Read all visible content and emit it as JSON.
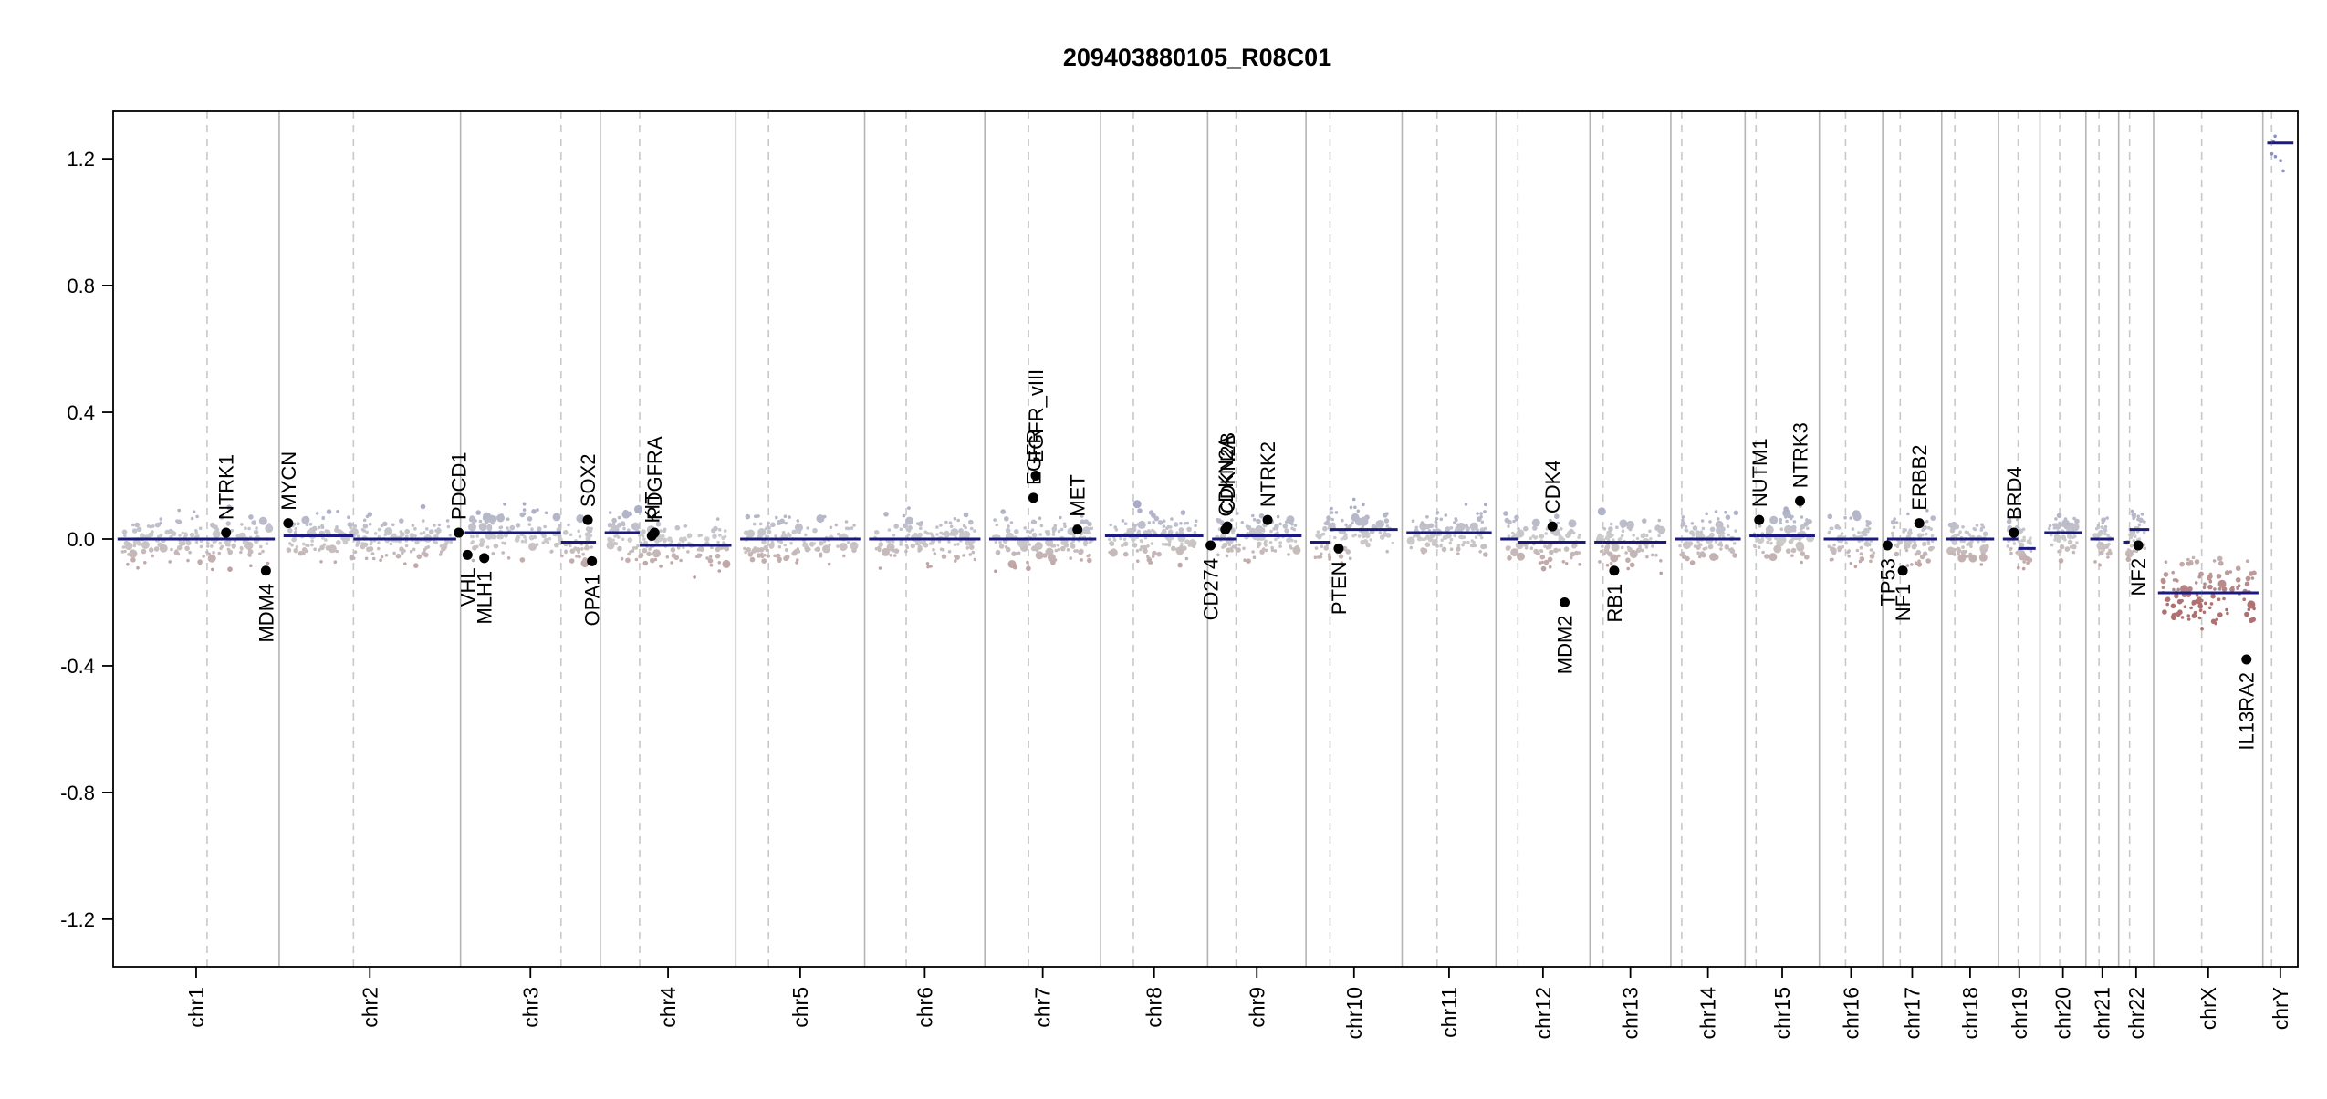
{
  "chart_data": {
    "type": "scatter",
    "title": "209403880105_R08C01",
    "xlabel": "",
    "ylabel": "",
    "ylim": [
      -1.35,
      1.35
    ],
    "yticks": [
      "-1.2",
      "-0.8",
      "-0.4",
      "0.0",
      "0.4",
      "0.8",
      "1.2"
    ],
    "grid": "chromosome boundaries (solid) and centromeres (dashed)",
    "colors": {
      "gain": "#8a8fc4",
      "loss": "#b07070",
      "neutral": "#cccccc",
      "segment": "#1a1a80",
      "gene_marker": "#000000",
      "boundary": "#aaaaaa"
    },
    "chromosomes": [
      {
        "name": "chr1",
        "start": 0.0,
        "end": 0.076,
        "cen": 0.043
      },
      {
        "name": "chr2",
        "start": 0.076,
        "end": 0.159,
        "cen": 0.11
      },
      {
        "name": "chr3",
        "start": 0.159,
        "end": 0.223,
        "cen": 0.205
      },
      {
        "name": "chr4",
        "start": 0.223,
        "end": 0.285,
        "cen": 0.241
      },
      {
        "name": "chr5",
        "start": 0.285,
        "end": 0.344,
        "cen": 0.3
      },
      {
        "name": "chr6",
        "start": 0.344,
        "end": 0.399,
        "cen": 0.363
      },
      {
        "name": "chr7",
        "start": 0.399,
        "end": 0.452,
        "cen": 0.419
      },
      {
        "name": "chr8",
        "start": 0.452,
        "end": 0.501,
        "cen": 0.467
      },
      {
        "name": "chr9",
        "start": 0.501,
        "end": 0.546,
        "cen": 0.514
      },
      {
        "name": "chr10",
        "start": 0.546,
        "end": 0.59,
        "cen": 0.557
      },
      {
        "name": "chr11",
        "start": 0.59,
        "end": 0.633,
        "cen": 0.606
      },
      {
        "name": "chr12",
        "start": 0.633,
        "end": 0.676,
        "cen": 0.643
      },
      {
        "name": "chr13",
        "start": 0.676,
        "end": 0.713,
        "cen": 0.682
      },
      {
        "name": "chr14",
        "start": 0.713,
        "end": 0.747,
        "cen": 0.718
      },
      {
        "name": "chr15",
        "start": 0.747,
        "end": 0.781,
        "cen": 0.752
      },
      {
        "name": "chr16",
        "start": 0.781,
        "end": 0.81,
        "cen": 0.793
      },
      {
        "name": "chr17",
        "start": 0.81,
        "end": 0.837,
        "cen": 0.818
      },
      {
        "name": "chr18",
        "start": 0.837,
        "end": 0.863,
        "cen": 0.843
      },
      {
        "name": "chr19",
        "start": 0.863,
        "end": 0.882,
        "cen": 0.872
      },
      {
        "name": "chr20",
        "start": 0.882,
        "end": 0.903,
        "cen": 0.891
      },
      {
        "name": "chr21",
        "start": 0.903,
        "end": 0.918,
        "cen": 0.909
      },
      {
        "name": "chr22",
        "start": 0.918,
        "end": 0.934,
        "cen": 0.923
      },
      {
        "name": "chrX",
        "start": 0.934,
        "end": 0.984,
        "cen": 0.956
      },
      {
        "name": "chrY",
        "start": 0.984,
        "end": 1.0,
        "cen": 0.988
      }
    ],
    "segments": [
      {
        "chr": "chr1",
        "values": [
          0.0,
          0.0
        ]
      },
      {
        "chr": "chr2",
        "values": [
          0.01,
          0.0
        ]
      },
      {
        "chr": "chr3",
        "values": [
          0.02,
          -0.01
        ]
      },
      {
        "chr": "chr4",
        "values": [
          0.02,
          -0.02
        ]
      },
      {
        "chr": "chr5",
        "values": [
          0.0,
          0.0
        ]
      },
      {
        "chr": "chr6",
        "values": [
          0.0,
          0.0
        ]
      },
      {
        "chr": "chr7",
        "values": [
          0.0,
          0.0
        ]
      },
      {
        "chr": "chr8",
        "values": [
          0.01,
          0.01
        ]
      },
      {
        "chr": "chr9",
        "values": [
          0.0,
          0.01
        ]
      },
      {
        "chr": "chr10",
        "values": [
          -0.01,
          0.03
        ]
      },
      {
        "chr": "chr11",
        "values": [
          0.02,
          0.02
        ]
      },
      {
        "chr": "chr12",
        "values": [
          0.0,
          -0.01
        ]
      },
      {
        "chr": "chr13",
        "values": [
          -0.01,
          -0.01
        ]
      },
      {
        "chr": "chr14",
        "values": [
          0.0,
          0.0
        ]
      },
      {
        "chr": "chr15",
        "values": [
          0.01,
          0.01
        ]
      },
      {
        "chr": "chr16",
        "values": [
          0.0,
          0.0
        ]
      },
      {
        "chr": "chr17",
        "values": [
          0.0,
          0.0
        ]
      },
      {
        "chr": "chr18",
        "values": [
          0.0,
          0.0
        ]
      },
      {
        "chr": "chr19",
        "values": [
          0.0,
          -0.03
        ]
      },
      {
        "chr": "chr20",
        "values": [
          0.02,
          0.02
        ]
      },
      {
        "chr": "chr21",
        "values": [
          0.0,
          0.0
        ]
      },
      {
        "chr": "chr22",
        "values": [
          -0.01,
          0.03
        ]
      },
      {
        "chr": "chrX",
        "values": [
          -0.17,
          -0.17
        ]
      },
      {
        "chr": "chrY",
        "values": [
          1.25,
          1.25
        ]
      }
    ],
    "genes": [
      {
        "name": "NTRK1",
        "chr": "chr1",
        "pos": 0.68,
        "value": 0.02,
        "label_side": "up"
      },
      {
        "name": "MDM4",
        "chr": "chr1",
        "pos": 0.92,
        "value": -0.1,
        "label_side": "down"
      },
      {
        "name": "MYCN",
        "chr": "chr2",
        "pos": 0.05,
        "value": 0.05,
        "label_side": "up"
      },
      {
        "name": "PDCD1",
        "chr": "chr2",
        "pos": 0.99,
        "value": 0.02,
        "label_side": "up"
      },
      {
        "name": "VHL",
        "chr": "chr3",
        "pos": 0.05,
        "value": -0.05,
        "label_side": "down"
      },
      {
        "name": "MLH1",
        "chr": "chr3",
        "pos": 0.17,
        "value": -0.06,
        "label_side": "down"
      },
      {
        "name": "SOX2",
        "chr": "chr3",
        "pos": 0.91,
        "value": 0.06,
        "label_side": "up"
      },
      {
        "name": "OPA1",
        "chr": "chr3",
        "pos": 0.94,
        "value": -0.07,
        "label_side": "down"
      },
      {
        "name": "KIT",
        "chr": "chr4",
        "pos": 0.38,
        "value": 0.01,
        "label_side": "up"
      },
      {
        "name": "PDGFRA",
        "chr": "chr4",
        "pos": 0.4,
        "value": 0.02,
        "label_side": "up"
      },
      {
        "name": "EGFR",
        "chr": "chr7",
        "pos": 0.42,
        "value": 0.13,
        "label_side": "up"
      },
      {
        "name": "EGFR_vIII",
        "chr": "chr7",
        "pos": 0.44,
        "value": 0.2,
        "label_side": "up"
      },
      {
        "name": "MET",
        "chr": "chr7",
        "pos": 0.8,
        "value": 0.03,
        "label_side": "up"
      },
      {
        "name": "CD274",
        "chr": "chr9",
        "pos": 0.03,
        "value": -0.02,
        "label_side": "down"
      },
      {
        "name": "CDKN2A",
        "chr": "chr9",
        "pos": 0.18,
        "value": 0.03,
        "label_side": "up"
      },
      {
        "name": "CDKN2B",
        "chr": "chr9",
        "pos": 0.2,
        "value": 0.04,
        "label_side": "up"
      },
      {
        "name": "NTRK2",
        "chr": "chr9",
        "pos": 0.61,
        "value": 0.06,
        "label_side": "up"
      },
      {
        "name": "PTEN",
        "chr": "chr10",
        "pos": 0.34,
        "value": -0.03,
        "label_side": "down"
      },
      {
        "name": "CDK4",
        "chr": "chr12",
        "pos": 0.6,
        "value": 0.04,
        "label_side": "up"
      },
      {
        "name": "MDM2",
        "chr": "chr12",
        "pos": 0.73,
        "value": -0.2,
        "label_side": "down"
      },
      {
        "name": "RB1",
        "chr": "chr13",
        "pos": 0.3,
        "value": -0.1,
        "label_side": "down"
      },
      {
        "name": "NUTM1",
        "chr": "chr15",
        "pos": 0.19,
        "value": 0.06,
        "label_side": "up"
      },
      {
        "name": "NTRK3",
        "chr": "chr15",
        "pos": 0.74,
        "value": 0.12,
        "label_side": "up"
      },
      {
        "name": "TP53",
        "chr": "chr17",
        "pos": 0.08,
        "value": -0.02,
        "label_side": "down"
      },
      {
        "name": "NF1",
        "chr": "chr17",
        "pos": 0.34,
        "value": -0.1,
        "label_side": "down"
      },
      {
        "name": "ERBB2",
        "chr": "chr17",
        "pos": 0.62,
        "value": 0.05,
        "label_side": "up"
      },
      {
        "name": "BRD4",
        "chr": "chr19",
        "pos": 0.37,
        "value": 0.02,
        "label_side": "up"
      },
      {
        "name": "NF2",
        "chr": "chr22",
        "pos": 0.56,
        "value": -0.02,
        "label_side": "down"
      },
      {
        "name": "IL13RA2",
        "chr": "chrX",
        "pos": 0.85,
        "value": -0.38,
        "label_side": "down"
      }
    ]
  }
}
